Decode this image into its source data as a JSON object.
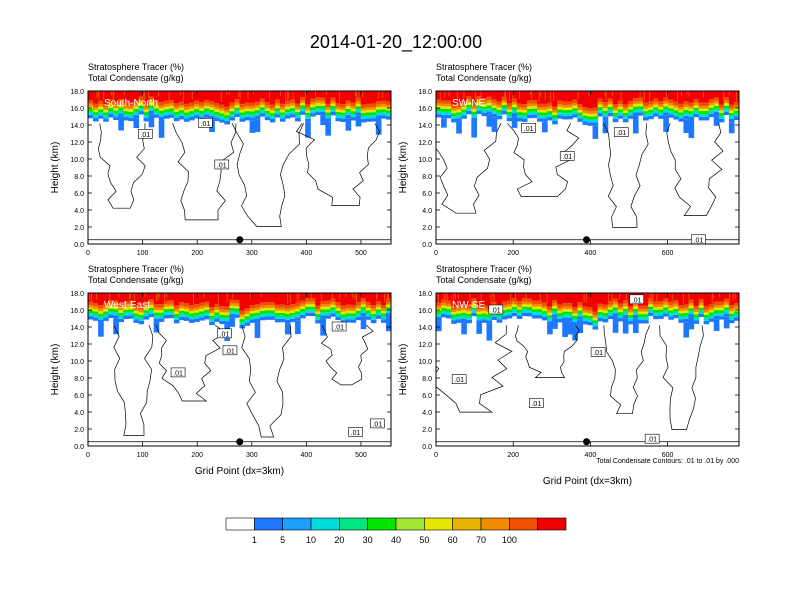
{
  "title": "2014-01-20_12:00:00",
  "chart_data": [
    {
      "type": "heatmap",
      "panel_label": "South-North",
      "left_string_1": "Stratosphere Tracer   (%)",
      "left_string_2": "Total Condensate   (g/kg)",
      "ylabel": "Height (km)",
      "xlabel": "",
      "xlim": [
        0,
        555
      ],
      "ylim": [
        0,
        18
      ],
      "xticks": [
        0,
        100,
        200,
        300,
        400,
        500
      ],
      "yticks": [
        "0.0",
        "2.0",
        "4.0",
        "6.0",
        "8.0",
        "10.0",
        "12.0",
        "14.0",
        "16.0",
        "18.0"
      ],
      "marker_x": 278,
      "contour_labels": [
        {
          "text": ".01",
          "x": 105,
          "y": 12.9
        },
        {
          "text": ".01",
          "x": 215,
          "y": 14.2
        },
        {
          "text": ".01",
          "x": 245,
          "y": 9.3
        }
      ]
    },
    {
      "type": "heatmap",
      "panel_label": "SW-NE",
      "left_string_1": "Stratosphere Tracer   (%)",
      "left_string_2": "Total Condensate   (g/kg)",
      "ylabel": "Height (km)",
      "xlabel": "",
      "xlim": [
        0,
        785
      ],
      "ylim": [
        0,
        18
      ],
      "xticks": [
        0,
        200,
        400,
        600
      ],
      "yticks": [
        "0.0",
        "2.0",
        "4.0",
        "6.0",
        "8.0",
        "10.0",
        "12.0",
        "14.0",
        "16.0",
        "18.0"
      ],
      "marker_x": 390,
      "contour_labels": [
        {
          "text": ".01",
          "x": 240,
          "y": 13.6
        },
        {
          "text": ".01",
          "x": 340,
          "y": 10.3
        },
        {
          "text": ".01",
          "x": 480,
          "y": 13.1
        },
        {
          "text": ".01",
          "x": 680,
          "y": 0.5
        }
      ]
    },
    {
      "type": "heatmap",
      "panel_label": "West-East",
      "left_string_1": "Stratosphere Tracer   (%)",
      "left_string_2": "Total Condensate   (g/kg)",
      "ylabel": "Height (km)",
      "xlabel": "Grid Point (dx=3km)",
      "xlim": [
        0,
        555
      ],
      "ylim": [
        0,
        18
      ],
      "xticks": [
        0,
        100,
        200,
        300,
        400,
        500
      ],
      "yticks": [
        "0.0",
        "2.0",
        "4.0",
        "6.0",
        "8.0",
        "10.0",
        "12.0",
        "14.0",
        "16.0",
        "18.0"
      ],
      "marker_x": 278,
      "contour_labels": [
        {
          "text": ".01",
          "x": 250,
          "y": 13.2
        },
        {
          "text": ".01",
          "x": 260,
          "y": 11.2
        },
        {
          "text": ".01",
          "x": 165,
          "y": 8.6
        },
        {
          "text": ".01",
          "x": 460,
          "y": 14.0
        },
        {
          "text": ".01",
          "x": 490,
          "y": 1.6
        },
        {
          "text": ".01",
          "x": 530,
          "y": 2.6
        }
      ]
    },
    {
      "type": "heatmap",
      "panel_label": "NW-SE",
      "left_string_1": "Stratosphere Tracer   (%)",
      "left_string_2": "Total Condensate   (g/kg)",
      "ylabel": "Height (km)",
      "xlabel": "Grid Point (dx=3km)",
      "xlim": [
        0,
        785
      ],
      "ylim": [
        0,
        18
      ],
      "xticks": [
        0,
        200,
        400,
        600
      ],
      "yticks": [
        "0.0",
        "2.0",
        "4.0",
        "6.0",
        "8.0",
        "10.0",
        "12.0",
        "14.0",
        "16.0",
        "18.0"
      ],
      "marker_x": 390,
      "contour_labels": [
        {
          "text": ".01",
          "x": 155,
          "y": 16.0
        },
        {
          "text": ".01",
          "x": 520,
          "y": 17.2
        },
        {
          "text": ".01",
          "x": 420,
          "y": 11.0
        },
        {
          "text": ".01",
          "x": 60,
          "y": 7.8
        },
        {
          "text": ".01",
          "x": 260,
          "y": 5.0
        },
        {
          "text": ".01",
          "x": 560,
          "y": 0.8
        }
      ]
    }
  ],
  "contour_note": "Total Condensate Contours: .01 to .01 by .000",
  "colorbar": {
    "levels": [
      "1",
      "5",
      "10",
      "20",
      "30",
      "40",
      "50",
      "60",
      "70",
      "100"
    ],
    "colors": [
      "#ffffff",
      "#1e78ff",
      "#1ea0ff",
      "#00dcdc",
      "#00e682",
      "#00e600",
      "#a0e632",
      "#e6e600",
      "#e6b400",
      "#f08c00",
      "#f05000",
      "#f00000"
    ]
  }
}
